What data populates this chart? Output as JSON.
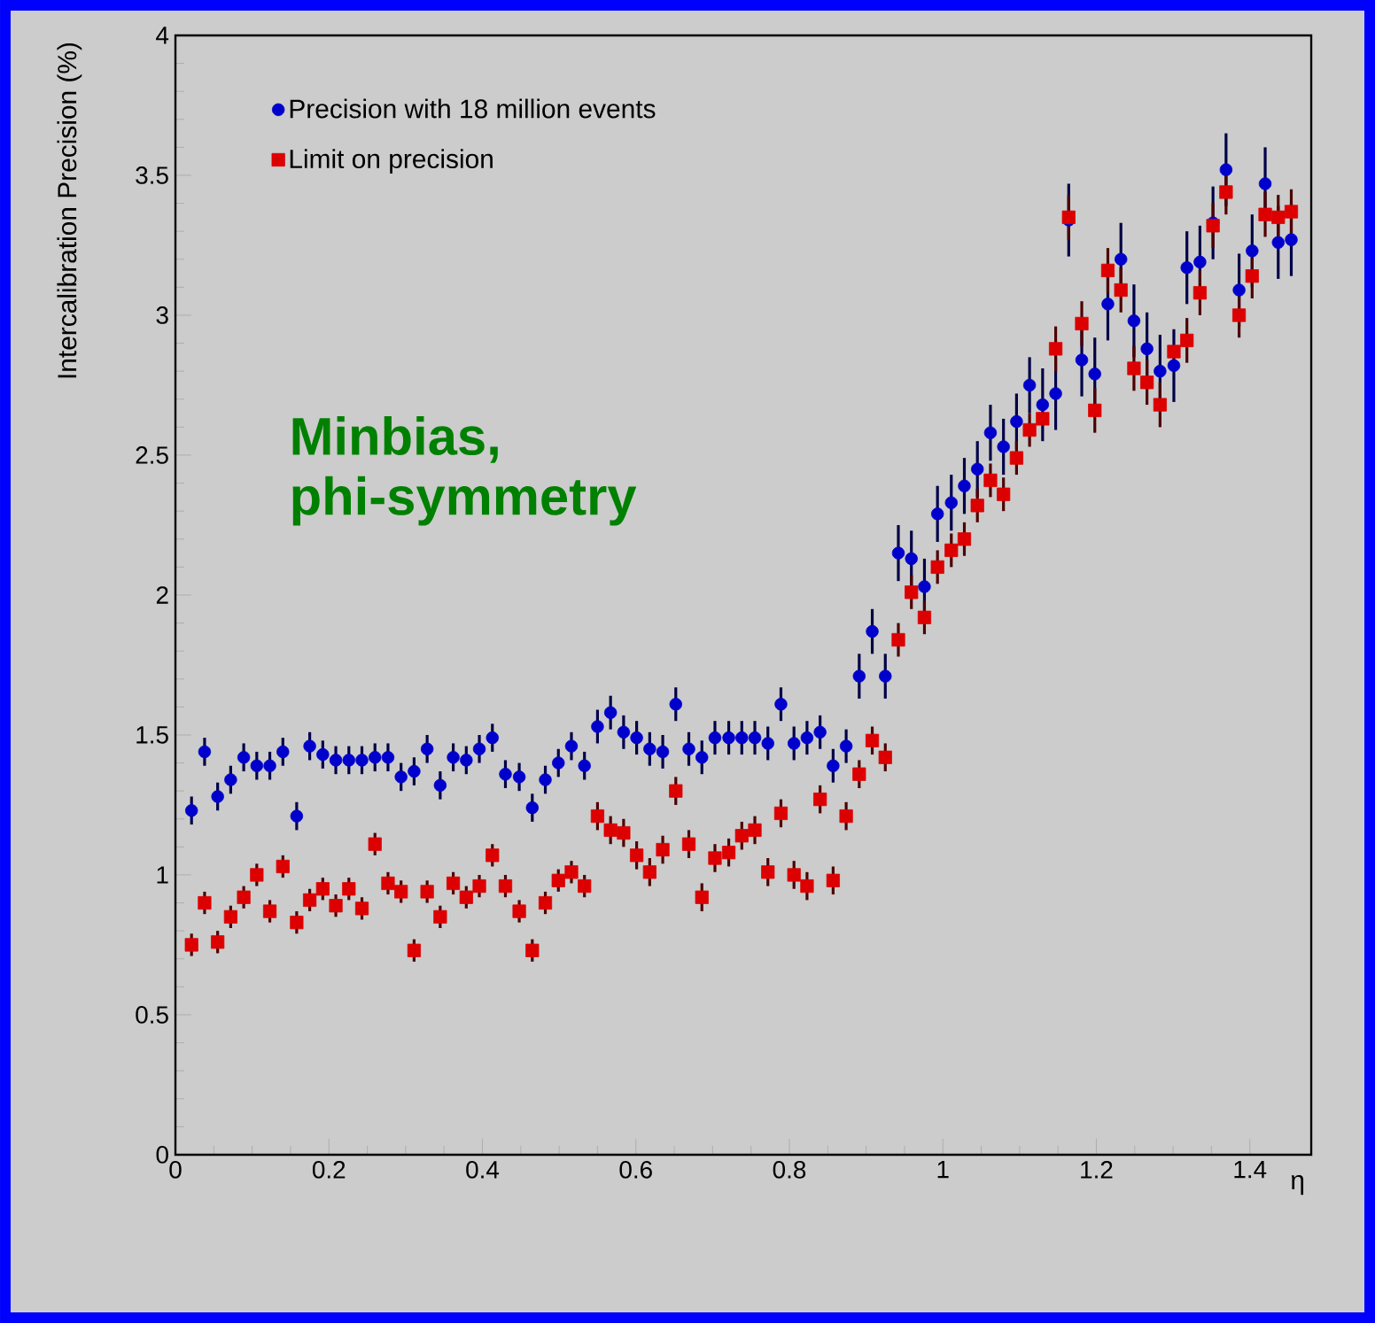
{
  "chart_data": {
    "type": "scatter",
    "xlabel": "η",
    "ylabel": "Intercalibration Precision (%)",
    "annotations": [
      "Minbias, phi-symmetry"
    ],
    "xlim": [
      0,
      1.48
    ],
    "ylim": [
      0,
      4
    ],
    "xticks": [
      0,
      0.2,
      0.4,
      0.6,
      0.8,
      1,
      1.2,
      1.4
    ],
    "yticks": [
      0,
      0.5,
      1,
      1.5,
      2,
      2.5,
      3,
      3.5,
      4
    ],
    "legend": "top left",
    "grid": false,
    "x": [
      0.021,
      0.038,
      0.055,
      0.072,
      0.089,
      0.106,
      0.123,
      0.14,
      0.158,
      0.175,
      0.192,
      0.209,
      0.226,
      0.243,
      0.26,
      0.277,
      0.294,
      0.311,
      0.328,
      0.345,
      0.362,
      0.379,
      0.396,
      0.413,
      0.43,
      0.448,
      0.465,
      0.482,
      0.499,
      0.516,
      0.533,
      0.55,
      0.567,
      0.584,
      0.601,
      0.618,
      0.635,
      0.652,
      0.669,
      0.686,
      0.703,
      0.721,
      0.738,
      0.755,
      0.772,
      0.789,
      0.806,
      0.823,
      0.84,
      0.857,
      0.874,
      0.891,
      0.908,
      0.925,
      0.942,
      0.959,
      0.976,
      0.993,
      1.011,
      1.028,
      1.045,
      1.062,
      1.079,
      1.096,
      1.113,
      1.13,
      1.147,
      1.164,
      1.181,
      1.198,
      1.215,
      1.232,
      1.249,
      1.266,
      1.283,
      1.301,
      1.318,
      1.335,
      1.352,
      1.369,
      1.386,
      1.403,
      1.42,
      1.437,
      1.454
    ],
    "series": [
      {
        "name": "Precision with 18 million events",
        "color": "#0000cc",
        "marker": "circle",
        "values": [
          1.23,
          1.44,
          1.28,
          1.34,
          1.42,
          1.39,
          1.39,
          1.44,
          1.21,
          1.46,
          1.43,
          1.41,
          1.41,
          1.41,
          1.42,
          1.42,
          1.35,
          1.37,
          1.45,
          1.32,
          1.42,
          1.41,
          1.45,
          1.49,
          1.36,
          1.35,
          1.24,
          1.34,
          1.4,
          1.46,
          1.39,
          1.53,
          1.58,
          1.51,
          1.49,
          1.45,
          1.44,
          1.61,
          1.45,
          1.42,
          1.49,
          1.49,
          1.49,
          1.49,
          1.47,
          1.61,
          1.47,
          1.49,
          1.51,
          1.39,
          1.46,
          1.71,
          1.87,
          1.71,
          2.15,
          2.13,
          2.03,
          2.29,
          2.33,
          2.39,
          2.45,
          2.58,
          2.53,
          2.62,
          2.75,
          2.68,
          2.72,
          3.34,
          2.84,
          2.79,
          3.04,
          3.2,
          2.98,
          2.88,
          2.8,
          2.82,
          3.17,
          3.19,
          3.33,
          3.52,
          3.09,
          3.23,
          3.47,
          3.26,
          3.27
        ],
        "errors": [
          0.05,
          0.05,
          0.05,
          0.05,
          0.05,
          0.05,
          0.05,
          0.05,
          0.05,
          0.05,
          0.05,
          0.05,
          0.05,
          0.05,
          0.05,
          0.05,
          0.05,
          0.05,
          0.05,
          0.05,
          0.05,
          0.05,
          0.05,
          0.05,
          0.05,
          0.05,
          0.05,
          0.05,
          0.05,
          0.05,
          0.05,
          0.06,
          0.06,
          0.06,
          0.06,
          0.06,
          0.06,
          0.06,
          0.06,
          0.06,
          0.06,
          0.06,
          0.06,
          0.06,
          0.06,
          0.06,
          0.06,
          0.06,
          0.06,
          0.06,
          0.06,
          0.08,
          0.08,
          0.08,
          0.1,
          0.1,
          0.1,
          0.1,
          0.1,
          0.1,
          0.1,
          0.1,
          0.1,
          0.1,
          0.1,
          0.13,
          0.13,
          0.13,
          0.13,
          0.13,
          0.13,
          0.13,
          0.13,
          0.13,
          0.13,
          0.13,
          0.13,
          0.13,
          0.13,
          0.13,
          0.13,
          0.13,
          0.13,
          0.13,
          0.13
        ]
      },
      {
        "name": "Limit on precision",
        "color": "#dd0000",
        "marker": "square",
        "values": [
          0.75,
          0.9,
          0.76,
          0.85,
          0.92,
          1.0,
          0.87,
          1.03,
          0.83,
          0.91,
          0.95,
          0.89,
          0.95,
          0.88,
          1.11,
          0.97,
          0.94,
          0.73,
          0.94,
          0.85,
          0.97,
          0.92,
          0.96,
          1.07,
          0.96,
          0.87,
          0.73,
          0.9,
          0.98,
          1.01,
          0.96,
          1.21,
          1.16,
          1.15,
          1.07,
          1.01,
          1.09,
          1.3,
          1.11,
          0.92,
          1.06,
          1.08,
          1.14,
          1.16,
          1.01,
          1.22,
          1.0,
          0.96,
          1.27,
          0.98,
          1.21,
          1.36,
          1.48,
          1.42,
          1.84,
          2.01,
          1.92,
          2.1,
          2.16,
          2.2,
          2.32,
          2.41,
          2.36,
          2.49,
          2.59,
          2.63,
          2.88,
          3.35,
          2.97,
          2.66,
          3.16,
          3.09,
          2.81,
          2.76,
          2.68,
          2.87,
          2.91,
          3.08,
          3.32,
          3.44,
          3.0,
          3.14,
          3.36,
          3.35,
          3.37
        ],
        "errors": [
          0.04,
          0.04,
          0.04,
          0.04,
          0.04,
          0.04,
          0.04,
          0.04,
          0.04,
          0.04,
          0.04,
          0.04,
          0.04,
          0.04,
          0.04,
          0.04,
          0.04,
          0.04,
          0.04,
          0.04,
          0.04,
          0.04,
          0.04,
          0.04,
          0.04,
          0.04,
          0.04,
          0.04,
          0.04,
          0.04,
          0.04,
          0.05,
          0.05,
          0.05,
          0.05,
          0.05,
          0.05,
          0.05,
          0.05,
          0.05,
          0.05,
          0.05,
          0.05,
          0.05,
          0.05,
          0.05,
          0.05,
          0.05,
          0.05,
          0.05,
          0.05,
          0.05,
          0.05,
          0.05,
          0.06,
          0.06,
          0.06,
          0.06,
          0.06,
          0.06,
          0.06,
          0.06,
          0.06,
          0.06,
          0.06,
          null,
          0.08,
          0.08,
          0.08,
          0.08,
          0.08,
          0.08,
          0.08,
          0.08,
          0.08,
          null,
          0.08,
          0.08,
          0.08,
          0.08,
          0.08,
          0.08,
          0.08,
          0.08,
          0.08
        ]
      }
    ]
  }
}
